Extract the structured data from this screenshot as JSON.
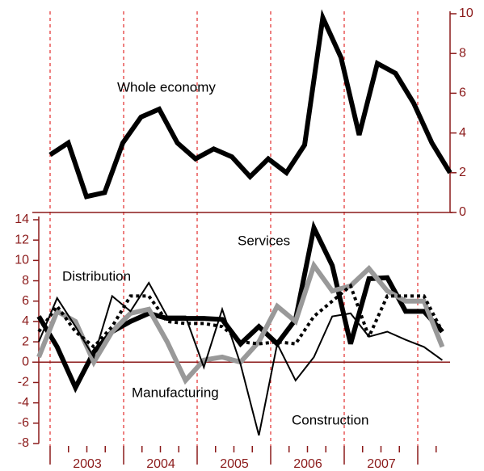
{
  "chart_data": [
    {
      "type": "line",
      "categories": [
        null,
        null,
        null,
        null,
        null,
        null,
        null,
        null,
        null,
        null,
        null,
        null,
        null,
        null,
        null,
        null,
        null,
        null,
        null,
        null,
        null,
        null,
        null
      ],
      "y2lim": [
        0,
        10
      ],
      "y2ticks": [
        0,
        2,
        4,
        6,
        8,
        10
      ],
      "series": [
        {
          "name": "Whole economy",
          "color": "#000000",
          "axis": "y2",
          "values": [
            2.9,
            3.5,
            0.8,
            1.0,
            3.5,
            4.8,
            5.2,
            3.5,
            2.7,
            3.2,
            2.8,
            1.8,
            2.7,
            2.0,
            3.4,
            9.8,
            7.8,
            3.9,
            7.5,
            7.0,
            5.5,
            3.5,
            2.0
          ]
        }
      ]
    },
    {
      "type": "line",
      "categories": [
        null,
        null,
        null,
        null,
        null,
        null,
        null,
        null,
        null,
        null,
        null,
        null,
        null,
        null,
        null,
        null,
        null,
        null,
        null,
        null,
        null,
        null,
        null
      ],
      "year_labels": [
        "2003",
        "2004",
        "2005",
        "2006",
        "2007"
      ],
      "ylim": [
        -8,
        14
      ],
      "yticks": [
        -8,
        -6,
        -4,
        -2,
        0,
        2,
        4,
        6,
        8,
        10,
        12,
        14
      ],
      "series": [
        {
          "name": "Services",
          "color": "#000000",
          "values": [
            4.5,
            1.5,
            -2.5,
            1.0,
            3.0,
            4.0,
            4.8,
            4.3,
            4.3,
            4.3,
            4.2,
            1.8,
            3.5,
            1.8,
            4.2,
            13.2,
            9.5,
            1.8,
            8.2,
            8.3,
            5.0,
            5.0,
            3.0
          ]
        },
        {
          "name": "Manufacturing",
          "color": "#999999",
          "values": [
            0.5,
            5.0,
            4.0,
            0.0,
            3.0,
            4.8,
            5.2,
            2.0,
            -1.8,
            0.2,
            0.5,
            0.0,
            2.0,
            5.5,
            4.0,
            9.5,
            7.0,
            7.5,
            9.2,
            7.0,
            6.0,
            6.0,
            1.5
          ]
        },
        {
          "name": "Distribution",
          "color": "#000000",
          "values": [
            3.0,
            5.5,
            3.0,
            1.5,
            3.5,
            6.5,
            6.5,
            4.0,
            3.8,
            3.8,
            3.5,
            2.0,
            1.8,
            2.0,
            1.8,
            4.5,
            6.0,
            7.5,
            2.5,
            6.5,
            6.5,
            6.5,
            3.0
          ]
        },
        {
          "name": "Construction",
          "color": "#000000",
          "values": [
            2.0,
            6.3,
            3.5,
            0.5,
            6.5,
            5.0,
            7.8,
            4.5,
            4.5,
            -0.5,
            5.2,
            -0.2,
            -7.2,
            1.8,
            -1.8,
            0.5,
            4.5,
            4.8,
            2.5,
            3.0,
            2.2,
            1.5,
            0.2
          ]
        }
      ]
    }
  ]
}
